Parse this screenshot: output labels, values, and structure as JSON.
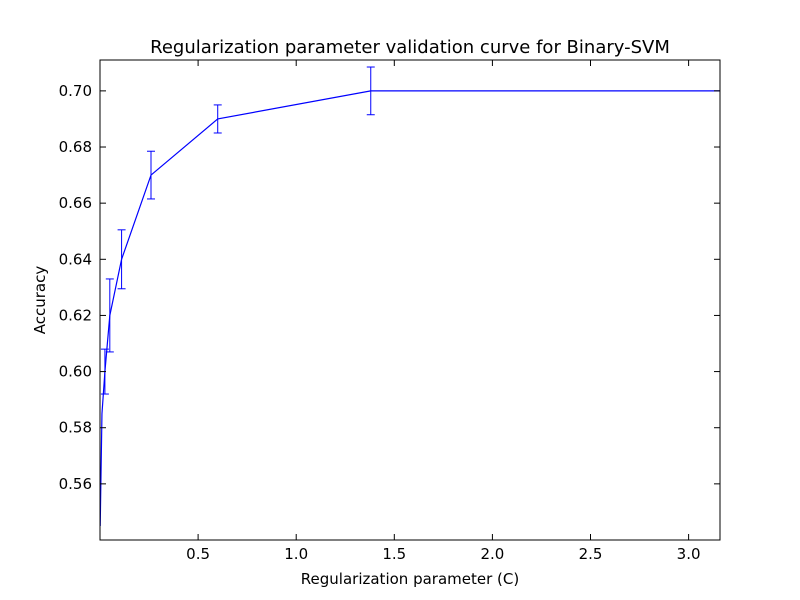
{
  "chart_data": {
    "type": "line",
    "title": "Regularization parameter validation curve for Binary-SVM",
    "xlabel": "Regularization parameter (C)",
    "ylabel": "Accuracy",
    "xlim": [
      0.0,
      3.16
    ],
    "ylim": [
      0.54,
      0.711
    ],
    "grid": false,
    "x_ticks": [
      0.5,
      1.0,
      1.5,
      2.0,
      2.5,
      3.0
    ],
    "x_tick_labels": [
      "0.5",
      "1.0",
      "1.5",
      "2.0",
      "2.5",
      "3.0"
    ],
    "y_ticks": [
      0.56,
      0.58,
      0.6,
      0.62,
      0.64,
      0.66,
      0.68,
      0.7
    ],
    "y_tick_labels": [
      "0.56",
      "0.58",
      "0.60",
      "0.62",
      "0.64",
      "0.66",
      "0.68",
      "0.70"
    ],
    "series": [
      {
        "color": "#0000ff",
        "x": [
          0.001,
          0.01,
          0.025,
          0.05,
          0.11,
          0.26,
          0.6,
          1.38,
          3.16
        ],
        "y": [
          0.545,
          0.585,
          0.6,
          0.62,
          0.64,
          0.67,
          0.69,
          0.7,
          0.7
        ],
        "yerr": [
          0,
          0,
          0.008,
          0.013,
          0.0105,
          0.0085,
          0.005,
          0.0085,
          0
        ]
      }
    ]
  }
}
